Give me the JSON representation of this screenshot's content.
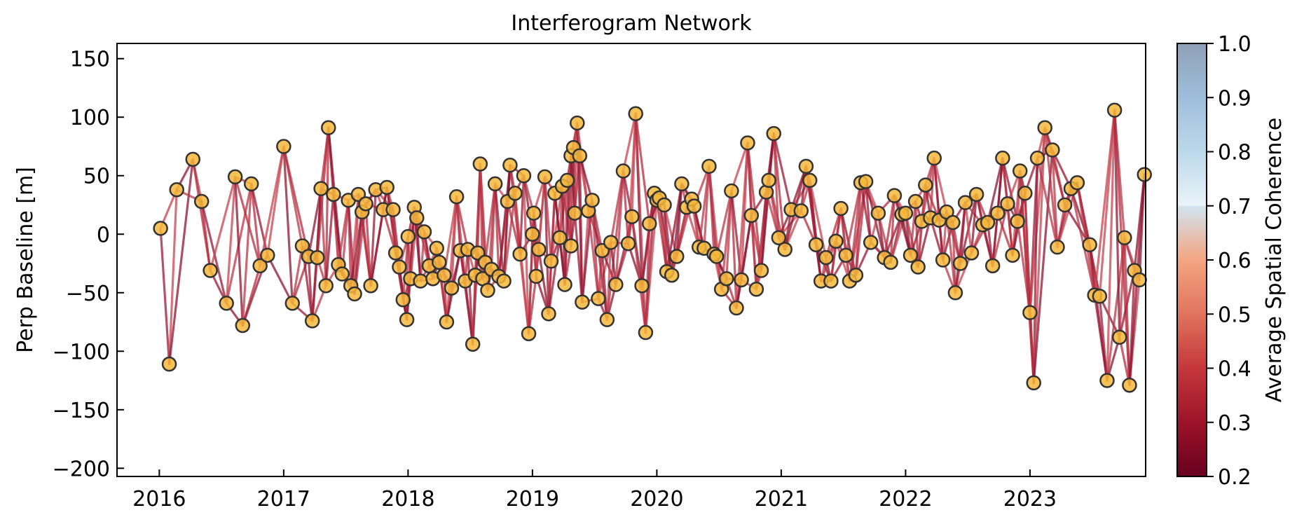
{
  "chart_data": {
    "type": "scatter",
    "title": "Interferogram Network",
    "xlabel": "",
    "ylabel": "Perp Baseline [m]",
    "xlim": [
      2015.66,
      2023.93
    ],
    "ylim": [
      -207,
      163
    ],
    "xticks": [
      2016,
      2017,
      2018,
      2019,
      2020,
      2021,
      2022,
      2023
    ],
    "yticks": [
      -200,
      -150,
      -100,
      -50,
      0,
      50,
      100,
      150
    ],
    "ytick_labels": [
      "−200",
      "−150",
      "−100",
      "−50",
      "0",
      "50",
      "100",
      "150"
    ],
    "grid": false,
    "node_color": "#F6B93B",
    "node_edge_color": "#333333",
    "colorbar": {
      "label": "Average Spatial Coherence",
      "min": 0.2,
      "max": 1.0,
      "ticks": [
        0.2,
        0.3,
        0.4,
        0.5,
        0.6,
        0.7,
        0.8,
        0.9,
        1.0
      ],
      "tick_labels": [
        "0.2",
        "0.3",
        "0.4",
        "0.5",
        "0.6",
        "0.7",
        "0.8",
        "0.9",
        "1.0"
      ],
      "masked_above": 0.7,
      "colormap": "RdBu"
    },
    "series": [
      {
        "points": [
          [
            2016.01,
            5
          ],
          [
            2016.08,
            -111
          ],
          [
            2016.14,
            38
          ],
          [
            2016.27,
            64
          ],
          [
            2016.34,
            28
          ],
          [
            2016.41,
            -31
          ],
          [
            2016.54,
            -59
          ],
          [
            2016.61,
            49
          ],
          [
            2016.67,
            -78
          ],
          [
            2016.74,
            43
          ],
          [
            2016.81,
            -27
          ],
          [
            2016.87,
            -18
          ],
          [
            2017.0,
            75
          ],
          [
            2017.07,
            -59
          ],
          [
            2017.15,
            -10
          ],
          [
            2017.2,
            -19
          ],
          [
            2017.23,
            -74
          ],
          [
            2017.27,
            -20
          ],
          [
            2017.3,
            39
          ],
          [
            2017.34,
            -44
          ],
          [
            2017.36,
            91
          ],
          [
            2017.4,
            34
          ],
          [
            2017.44,
            -26
          ],
          [
            2017.47,
            -34
          ],
          [
            2017.52,
            29
          ],
          [
            2017.54,
            -44
          ],
          [
            2017.57,
            -51
          ],
          [
            2017.6,
            34
          ],
          [
            2017.63,
            19
          ],
          [
            2017.66,
            26
          ],
          [
            2017.7,
            -44
          ],
          [
            2017.74,
            38
          ],
          [
            2017.8,
            21
          ],
          [
            2017.83,
            40
          ],
          [
            2017.88,
            21
          ],
          [
            2017.9,
            -16
          ],
          [
            2017.93,
            -28
          ],
          [
            2017.96,
            -56
          ],
          [
            2017.99,
            -73
          ],
          [
            2018.0,
            -2
          ],
          [
            2018.02,
            -38
          ],
          [
            2018.05,
            23
          ],
          [
            2018.07,
            14
          ],
          [
            2018.1,
            -40
          ],
          [
            2018.13,
            2
          ],
          [
            2018.17,
            -27
          ],
          [
            2018.2,
            -38
          ],
          [
            2018.23,
            -12
          ],
          [
            2018.25,
            -24
          ],
          [
            2018.29,
            -35
          ],
          [
            2018.31,
            -75
          ],
          [
            2018.35,
            -46
          ],
          [
            2018.39,
            32
          ],
          [
            2018.42,
            -14
          ],
          [
            2018.46,
            -40
          ],
          [
            2018.48,
            -13
          ],
          [
            2018.52,
            -94
          ],
          [
            2018.54,
            -35
          ],
          [
            2018.56,
            -16
          ],
          [
            2018.58,
            60
          ],
          [
            2018.6,
            -38
          ],
          [
            2018.62,
            -24
          ],
          [
            2018.64,
            -48
          ],
          [
            2018.67,
            -30
          ],
          [
            2018.7,
            43
          ],
          [
            2018.73,
            -36
          ],
          [
            2018.77,
            -40
          ],
          [
            2018.8,
            28
          ],
          [
            2018.82,
            59
          ],
          [
            2018.86,
            35
          ],
          [
            2018.9,
            -17
          ],
          [
            2018.93,
            50
          ],
          [
            2018.97,
            -85
          ],
          [
            2019.0,
            0
          ],
          [
            2019.01,
            18
          ],
          [
            2019.03,
            -36
          ],
          [
            2019.05,
            -13
          ],
          [
            2019.1,
            49
          ],
          [
            2019.13,
            -68
          ],
          [
            2019.15,
            -23
          ],
          [
            2019.18,
            35
          ],
          [
            2019.22,
            -3
          ],
          [
            2019.24,
            41
          ],
          [
            2019.26,
            -43
          ],
          [
            2019.28,
            46
          ],
          [
            2019.31,
            -10
          ],
          [
            2019.31,
            67
          ],
          [
            2019.33,
            74
          ],
          [
            2019.34,
            18
          ],
          [
            2019.36,
            95
          ],
          [
            2019.38,
            67
          ],
          [
            2019.4,
            -58
          ],
          [
            2019.45,
            20
          ],
          [
            2019.48,
            29
          ],
          [
            2019.53,
            -55
          ],
          [
            2019.56,
            -14
          ],
          [
            2019.6,
            -73
          ],
          [
            2019.63,
            -7
          ],
          [
            2019.67,
            -43
          ],
          [
            2019.73,
            54
          ],
          [
            2019.77,
            -8
          ],
          [
            2019.8,
            15
          ],
          [
            2019.83,
            103
          ],
          [
            2019.88,
            -44
          ],
          [
            2019.91,
            -84
          ],
          [
            2019.94,
            9
          ],
          [
            2019.98,
            35
          ],
          [
            2020.0,
            29
          ],
          [
            2020.02,
            31
          ],
          [
            2020.06,
            25
          ],
          [
            2020.08,
            -32
          ],
          [
            2020.12,
            -35
          ],
          [
            2020.16,
            -19
          ],
          [
            2020.2,
            43
          ],
          [
            2020.24,
            23
          ],
          [
            2020.28,
            30
          ],
          [
            2020.3,
            24
          ],
          [
            2020.34,
            -11
          ],
          [
            2020.38,
            -12
          ],
          [
            2020.42,
            58
          ],
          [
            2020.46,
            -17
          ],
          [
            2020.48,
            -19
          ],
          [
            2020.52,
            -47
          ],
          [
            2020.56,
            -38
          ],
          [
            2020.6,
            37
          ],
          [
            2020.64,
            -63
          ],
          [
            2020.68,
            -39
          ],
          [
            2020.73,
            78
          ],
          [
            2020.76,
            16
          ],
          [
            2020.8,
            -47
          ],
          [
            2020.84,
            -31
          ],
          [
            2020.88,
            36
          ],
          [
            2020.9,
            46
          ],
          [
            2020.94,
            86
          ],
          [
            2020.98,
            -3
          ],
          [
            2021.03,
            -13
          ],
          [
            2021.08,
            21
          ],
          [
            2021.16,
            20
          ],
          [
            2021.2,
            58
          ],
          [
            2021.23,
            46
          ],
          [
            2021.28,
            -9
          ],
          [
            2021.32,
            -40
          ],
          [
            2021.36,
            -20
          ],
          [
            2021.4,
            -40
          ],
          [
            2021.44,
            -6
          ],
          [
            2021.48,
            22
          ],
          [
            2021.52,
            -18
          ],
          [
            2021.55,
            -40
          ],
          [
            2021.6,
            -35
          ],
          [
            2021.64,
            44
          ],
          [
            2021.68,
            45
          ],
          [
            2021.72,
            -7
          ],
          [
            2021.78,
            18
          ],
          [
            2021.83,
            -20
          ],
          [
            2021.88,
            -24
          ],
          [
            2021.91,
            33
          ],
          [
            2021.97,
            17
          ],
          [
            2022.0,
            18
          ],
          [
            2022.04,
            -18
          ],
          [
            2022.08,
            28
          ],
          [
            2022.1,
            -28
          ],
          [
            2022.13,
            11
          ],
          [
            2022.16,
            42
          ],
          [
            2022.2,
            14
          ],
          [
            2022.23,
            65
          ],
          [
            2022.27,
            12
          ],
          [
            2022.3,
            -22
          ],
          [
            2022.33,
            19
          ],
          [
            2022.38,
            10
          ],
          [
            2022.4,
            -50
          ],
          [
            2022.44,
            -25
          ],
          [
            2022.48,
            27
          ],
          [
            2022.53,
            -16
          ],
          [
            2022.57,
            34
          ],
          [
            2022.62,
            8
          ],
          [
            2022.66,
            10
          ],
          [
            2022.7,
            -27
          ],
          [
            2022.74,
            18
          ],
          [
            2022.78,
            65
          ],
          [
            2022.82,
            26
          ],
          [
            2022.86,
            -18
          ],
          [
            2022.9,
            11
          ],
          [
            2022.92,
            54
          ],
          [
            2022.96,
            35
          ],
          [
            2023.0,
            -67
          ],
          [
            2023.03,
            -127
          ],
          [
            2023.06,
            65
          ],
          [
            2023.12,
            91
          ],
          [
            2023.18,
            72
          ],
          [
            2023.22,
            -11
          ],
          [
            2023.28,
            25
          ],
          [
            2023.33,
            39
          ],
          [
            2023.38,
            44
          ],
          [
            2023.48,
            -9
          ],
          [
            2023.52,
            -52
          ],
          [
            2023.56,
            -53
          ],
          [
            2023.62,
            -125
          ],
          [
            2023.68,
            106
          ],
          [
            2023.72,
            -88
          ],
          [
            2023.76,
            -3
          ],
          [
            2023.8,
            -129
          ],
          [
            2023.84,
            -31
          ],
          [
            2023.88,
            -39
          ],
          [
            2023.92,
            51
          ]
        ]
      }
    ]
  }
}
